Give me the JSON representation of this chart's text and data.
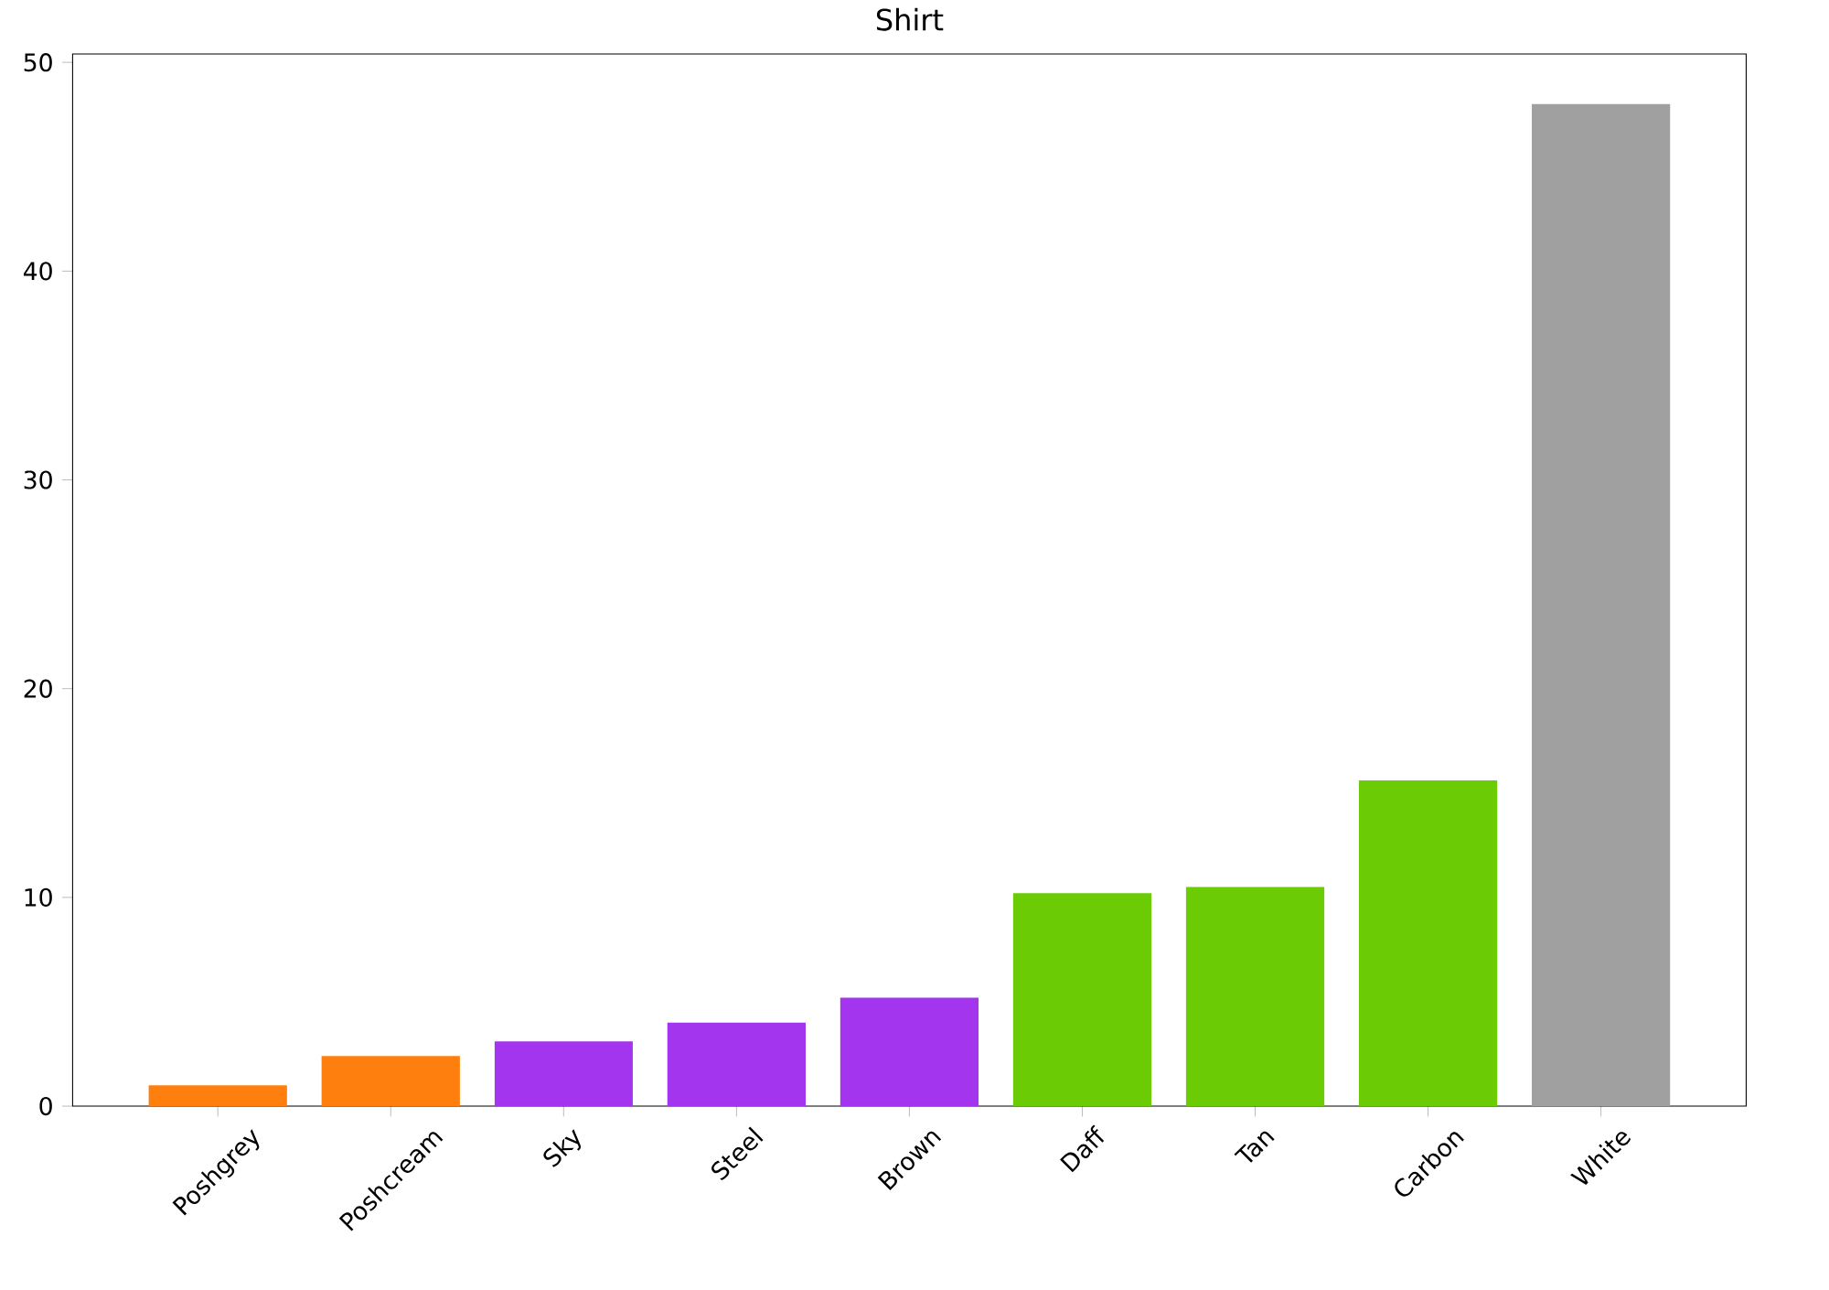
{
  "chart_data": {
    "type": "bar",
    "title": "Shirt",
    "categories": [
      "Poshgrey",
      "Poshcream",
      "Sky",
      "Steel",
      "Brown",
      "Daff",
      "Tan",
      "Carbon",
      "White"
    ],
    "values": [
      1.0,
      2.4,
      3.1,
      4.0,
      5.2,
      10.2,
      10.5,
      15.6,
      48.0
    ],
    "colors": [
      "#ff7f0e",
      "#ff7f0e",
      "#a335ee",
      "#a335ee",
      "#a335ee",
      "#6bcb05",
      "#6bcb05",
      "#6bcb05",
      "#a0a0a0"
    ],
    "ylim": [
      0,
      50.4
    ],
    "yticks": [
      0,
      10,
      20,
      30,
      40,
      50
    ],
    "grid": false
  }
}
